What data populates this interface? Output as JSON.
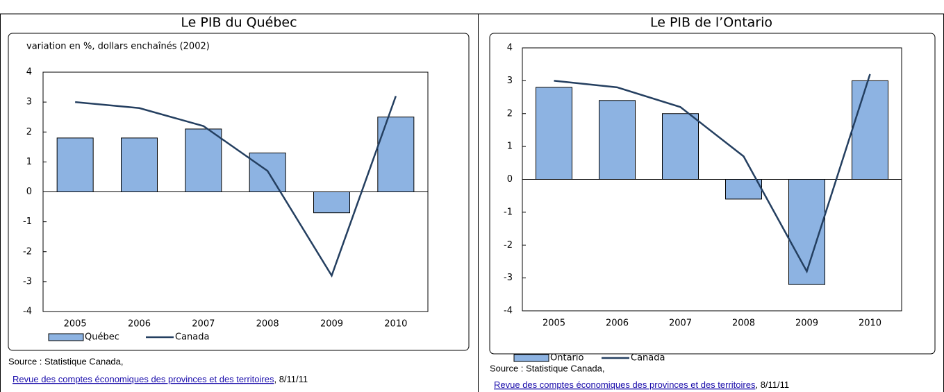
{
  "chart_data": [
    {
      "type": "bar",
      "title": "Le PIB du Québec",
      "y_label": "variation en %, dollars enchaînés (2002)",
      "categories": [
        "2005",
        "2006",
        "2007",
        "2008",
        "2009",
        "2010"
      ],
      "series": [
        {
          "name": "Québec",
          "color": "#8db3e2",
          "mark": "bar",
          "values": [
            1.8,
            1.8,
            2.1,
            1.3,
            -0.7,
            2.5
          ]
        },
        {
          "name": "Canada",
          "color": "#243f60",
          "mark": "line",
          "values": [
            3.0,
            2.8,
            2.2,
            0.7,
            -2.8,
            3.2
          ]
        }
      ],
      "ylim": [
        -4,
        4
      ],
      "yticks": [
        -4,
        -3,
        -2,
        -1,
        0,
        1,
        2,
        3,
        4
      ],
      "source": "Source : Statistique Canada,",
      "source_link": "Revue des comptes économiques des provinces et des territoires",
      "source_date": ", 8/11/11"
    },
    {
      "type": "bar",
      "title": "Le PIB de l’Ontario",
      "categories": [
        "2005",
        "2006",
        "2007",
        "2008",
        "2009",
        "2010"
      ],
      "series": [
        {
          "name": "Ontario",
          "color": "#8db3e2",
          "mark": "bar",
          "values": [
            2.8,
            2.4,
            2.0,
            -0.6,
            -3.2,
            3.0
          ]
        },
        {
          "name": "Canada",
          "color": "#243f60",
          "mark": "line",
          "values": [
            3.0,
            2.8,
            2.2,
            0.7,
            -2.8,
            3.2
          ]
        }
      ],
      "ylim": [
        -4,
        4
      ],
      "yticks": [
        -4,
        -3,
        -2,
        -1,
        0,
        1,
        2,
        3,
        4
      ],
      "source": "Source : Statistique Canada,",
      "source_link": "Revue des comptes économiques des provinces et des territoires",
      "source_date": ", 8/11/11"
    }
  ]
}
